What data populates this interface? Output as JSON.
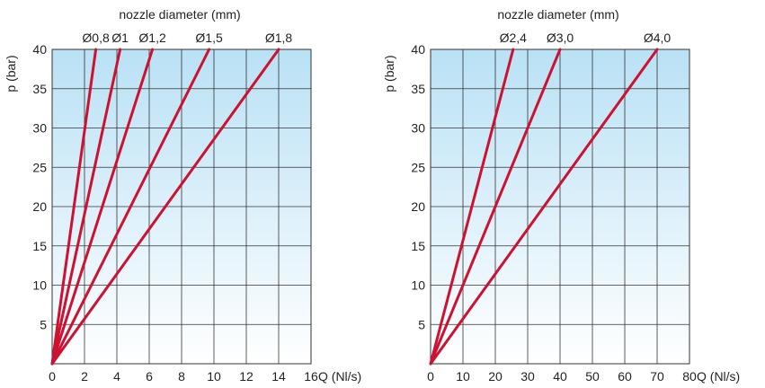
{
  "colors": {
    "line": "#cc1230",
    "grad_top": "#b9e1f5",
    "grad_bottom": "#ffffff",
    "grid": "#333333"
  },
  "chart_data": [
    {
      "type": "line",
      "title": "nozzle diameter (mm)",
      "xlabel": "Q (Nl/s)",
      "ylabel": "p (bar)",
      "xlim": [
        0,
        16
      ],
      "ylim": [
        0,
        40
      ],
      "xticks": [
        "0",
        "2",
        "4",
        "6",
        "8",
        "10",
        "12",
        "14",
        "16"
      ],
      "yticks": [
        "5",
        "10",
        "15",
        "20",
        "25",
        "30",
        "35",
        "40"
      ],
      "grid": true,
      "series": [
        {
          "name": "Ø0,8",
          "x": [
            0,
            2.7
          ],
          "y": [
            0,
            40
          ]
        },
        {
          "name": "Ø1",
          "x": [
            0,
            4.2
          ],
          "y": [
            0,
            40
          ]
        },
        {
          "name": "Ø1,2",
          "x": [
            0,
            6.2
          ],
          "y": [
            0,
            40
          ]
        },
        {
          "name": "Ø1,5",
          "x": [
            0,
            9.7
          ],
          "y": [
            0,
            40
          ]
        },
        {
          "name": "Ø1,8",
          "x": [
            0,
            14
          ],
          "y": [
            0,
            40
          ]
        }
      ]
    },
    {
      "type": "line",
      "title": "nozzle diameter (mm)",
      "xlabel": "Q (Nl/s)",
      "ylabel": "p (bar)",
      "xlim": [
        0,
        80
      ],
      "ylim": [
        0,
        40
      ],
      "xticks": [
        "0",
        "10",
        "20",
        "30",
        "40",
        "50",
        "60",
        "70",
        "80"
      ],
      "yticks": [
        "5",
        "10",
        "15",
        "20",
        "25",
        "30",
        "35",
        "40"
      ],
      "grid": true,
      "series": [
        {
          "name": "Ø2,4",
          "x": [
            0,
            25.5
          ],
          "y": [
            0,
            40
          ]
        },
        {
          "name": "Ø3,0",
          "x": [
            0,
            40
          ],
          "y": [
            0,
            40
          ]
        },
        {
          "name": "Ø4,0",
          "x": [
            0,
            70
          ],
          "y": [
            0,
            40
          ]
        }
      ]
    }
  ]
}
